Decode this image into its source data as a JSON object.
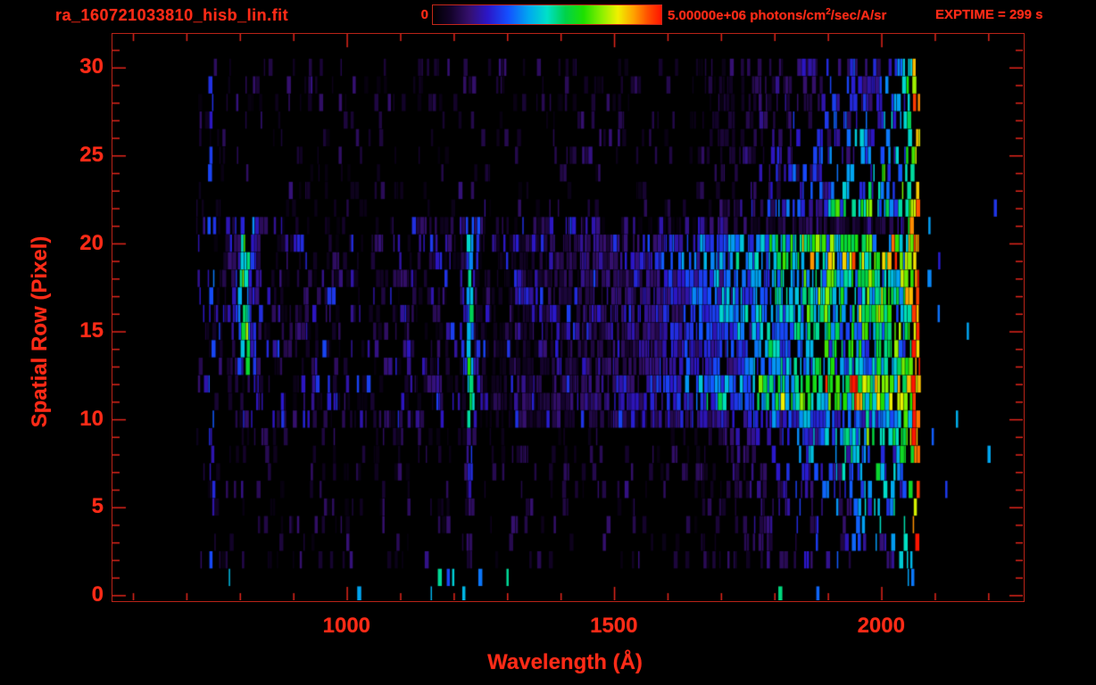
{
  "header": {
    "title": "ra_160721033810_hisb_lin.fit",
    "exptime_label": "EXPTIME = 299 s"
  },
  "colorbar": {
    "min_label": "0",
    "max_value_label": "5.00000e+06",
    "units_pre": "photons/cm",
    "units_sup": "2",
    "units_post": "/sec/A/sr",
    "stops": [
      [
        0.0,
        "#000000"
      ],
      [
        0.08,
        "#14032b"
      ],
      [
        0.16,
        "#35106e"
      ],
      [
        0.24,
        "#2b16c8"
      ],
      [
        0.33,
        "#1450ff"
      ],
      [
        0.42,
        "#00a8f0"
      ],
      [
        0.5,
        "#00e0c8"
      ],
      [
        0.58,
        "#00d24a"
      ],
      [
        0.66,
        "#1ee000"
      ],
      [
        0.74,
        "#8cf000"
      ],
      [
        0.81,
        "#f0f000"
      ],
      [
        0.88,
        "#ffa000"
      ],
      [
        0.94,
        "#ff5000"
      ],
      [
        1.0,
        "#ff1400"
      ]
    ]
  },
  "chart_data": {
    "type": "heatmap",
    "title": "ra_160721033810_hisb_lin.fit",
    "xlabel": "Wavelength (Å)",
    "ylabel": "Spatial Row (Pixel)",
    "x_range_angstrom": [
      562,
      2265
    ],
    "y_range_rows": [
      -0.3,
      31.9
    ],
    "x_major_ticks": [
      1000,
      1500,
      2000
    ],
    "x_minor_tick_step": 100,
    "y_major_ticks": [
      0,
      5,
      10,
      15,
      20,
      25,
      30
    ],
    "y_minor_tick_step": 1,
    "colorbar_min": 0,
    "colorbar_max": 5000000,
    "colorbar_units": "photons/cm^2/sec/A/sr",
    "exposure_seconds": 299,
    "grid": false,
    "axis_color": "#e2251b",
    "text_color": "#ff2b17",
    "background_color": "#000000",
    "seed": 160721,
    "data_model": {
      "description": "UV long-slit spectral image: spatial rows 0-31 vs wavelength. Sparse purple noise over rows 2-30 from 718 A to 2072 A cutoff; bright spectrum band rows ~9-21 with green airglow arc near 810 A, Lyman-alpha emission line at ~1232 A, continuum brightening from ~1240 A to green/yellow near 1850-2045 A, orange/red detector edge at 2046-2072 A, sparse blue specks beyond cutoff to ~2215 A.",
      "data_lambda_min": 718,
      "main_cutoff_lambda": 2072,
      "edge_strip_lambda": [
        2046,
        2072
      ],
      "edge_hot_lambda": 2060,
      "band_rows": [
        9.3,
        21.2
      ],
      "band_taper_rows": 1.2,
      "noise_rows": [
        2,
        30.6
      ],
      "dense_top_rows": [
        27.5,
        30.6
      ],
      "sparse_low_rows": [
        2,
        4.5
      ],
      "in_band_density_left": 0.62,
      "in_band_density_right": 0.78,
      "out_band_density": 0.34,
      "noise_amp_in_band": 0.28,
      "noise_amp_out_band": 0.16,
      "features": {
        "airglow_arc": {
          "lambda_center": 808,
          "curvature": 9,
          "center_row": 16.8,
          "rows": [
            12.6,
            21.0
          ],
          "sigma": 8,
          "peak": 0.72,
          "halo_sigma": 26,
          "halo_peak": 0.26
        },
        "lyman_alpha": {
          "lambda_center": 1232,
          "sigma": 6,
          "rows_bright": [
            9.5,
            13.5
          ],
          "peak_bright": 0.62,
          "rows_mid": [
            13.5,
            21.0
          ],
          "peak_mid": 0.47,
          "rows_faint": [
            1.5,
            9.5
          ],
          "peak_faint": 0.3
        },
        "continuum_points": [
          [
            1240,
            0.02
          ],
          [
            1400,
            0.1
          ],
          [
            1550,
            0.17
          ],
          [
            1650,
            0.27
          ],
          [
            1750,
            0.38
          ],
          [
            1850,
            0.5
          ],
          [
            1950,
            0.56
          ],
          [
            2046,
            0.58
          ]
        ],
        "bright_row_lanes": [
          [
            9.8,
            12.2,
            1.28
          ],
          [
            18.2,
            20.4,
            1.2
          ],
          [
            14.3,
            17.2,
            1.0
          ],
          [
            12.2,
            14.3,
            0.9
          ]
        ],
        "vertical_faint_line": {
          "lambda": 748,
          "half_width": 5,
          "strength": 0.27,
          "rows": [
            2,
            30
          ]
        },
        "right_noise_boost": {
          "lambda_start": 1620,
          "lambda_full": 2046,
          "intensity_base": 0.3,
          "intensity_near_band": 0.55,
          "density_near_band": 0.5,
          "density_far": 0.1
        },
        "post_cutoff_sparse": {
          "lambda_range": [
            2072,
            2215
          ],
          "probability": 0.016,
          "probability_in_band": 0.03,
          "intensity": 0.3
        },
        "bottom_rows_specks": {
          "rows": [
            0,
            1.5
          ],
          "base_probability": 0.012,
          "window1": [
            1150,
            1320
          ],
          "window2": [
            1780,
            2060
          ],
          "window_probability": 0.035,
          "intensity": 0.34
        }
      }
    }
  }
}
